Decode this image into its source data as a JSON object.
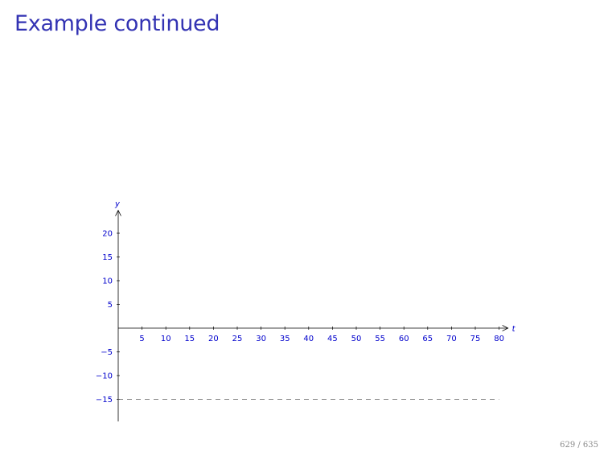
{
  "slide": {
    "title": "Example continued",
    "page_counter": "629 / 635"
  },
  "chart_data": {
    "type": "line",
    "title": "",
    "xlabel": "t",
    "ylabel": "y",
    "xlim": [
      0,
      80
    ],
    "ylim": [
      -20,
      25
    ],
    "x_ticks": [
      5,
      10,
      15,
      20,
      25,
      30,
      35,
      40,
      45,
      50,
      55,
      60,
      65,
      70,
      75,
      80
    ],
    "y_ticks": [
      -15,
      -10,
      -5,
      5,
      10,
      15,
      20
    ],
    "x_tick_labels": [
      "5",
      "10",
      "15",
      "20",
      "25",
      "30",
      "35",
      "40",
      "45",
      "50",
      "55",
      "60",
      "65",
      "70",
      "75",
      "80"
    ],
    "y_tick_labels": [
      "−15",
      "−10",
      "−5",
      "5",
      "10",
      "15",
      "20"
    ],
    "grid": false,
    "series": [
      {
        "style": "dashed",
        "x": [
          0,
          80
        ],
        "y": [
          -15,
          -15
        ]
      }
    ],
    "colors": {
      "ticks": "#0000cc",
      "axes": "#000000",
      "series": "#555555"
    }
  }
}
